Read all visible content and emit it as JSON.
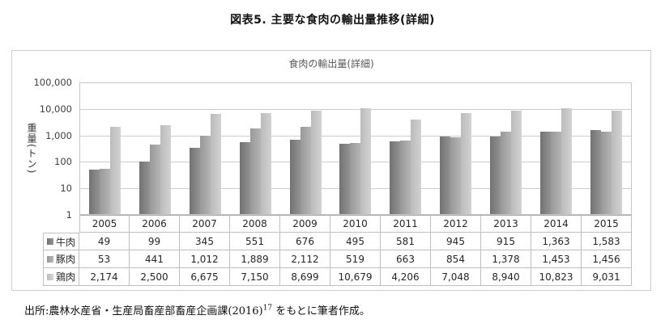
{
  "figure": {
    "title": "図表5. 主要な食肉の輸出量推移(詳細)"
  },
  "source": {
    "prefix": "出所:農林水産省・生産局畜産部畜産企画課(2016)",
    "superscript": "17",
    "suffix": " をもとに筆者作成。"
  },
  "chart_data": {
    "type": "bar",
    "title": "食肉の輸出量(詳細)",
    "ylabel": "重量(トン)",
    "y_scale": "log",
    "ylim": [
      1,
      100000
    ],
    "y_ticks": [
      "1",
      "10",
      "100",
      "1,000",
      "10,000",
      "100,000"
    ],
    "grid": true,
    "legend_position": "data-table-keys",
    "categories": [
      "2005",
      "2006",
      "2007",
      "2008",
      "2009",
      "2010",
      "2011",
      "2012",
      "2013",
      "2014",
      "2015"
    ],
    "series": [
      {
        "name": "牛肉",
        "color": "#7b7b7b",
        "values": [
          49,
          99,
          345,
          551,
          676,
          495,
          581,
          945,
          915,
          1363,
          1583
        ],
        "values_display": [
          "49",
          "99",
          "345",
          "551",
          "676",
          "495",
          "581",
          "945",
          "915",
          "1,363",
          "1,583"
        ]
      },
      {
        "name": "豚肉",
        "color": "#a4a4a4",
        "values": [
          53,
          441,
          1012,
          1889,
          2112,
          519,
          663,
          854,
          1378,
          1453,
          1456
        ],
        "values_display": [
          "53",
          "441",
          "1,012",
          "1,889",
          "2,112",
          "519",
          "663",
          "854",
          "1,378",
          "1,453",
          "1,456"
        ]
      },
      {
        "name": "鶏肉",
        "color": "#c9c9c9",
        "values": [
          2174,
          2500,
          6675,
          7150,
          8699,
          10679,
          4206,
          7048,
          8940,
          10823,
          9031
        ],
        "values_display": [
          "2,174",
          "2,500",
          "6,675",
          "7,150",
          "8,699",
          "10,679",
          "4,206",
          "7,048",
          "8,940",
          "10,823",
          "9,031"
        ]
      }
    ]
  }
}
